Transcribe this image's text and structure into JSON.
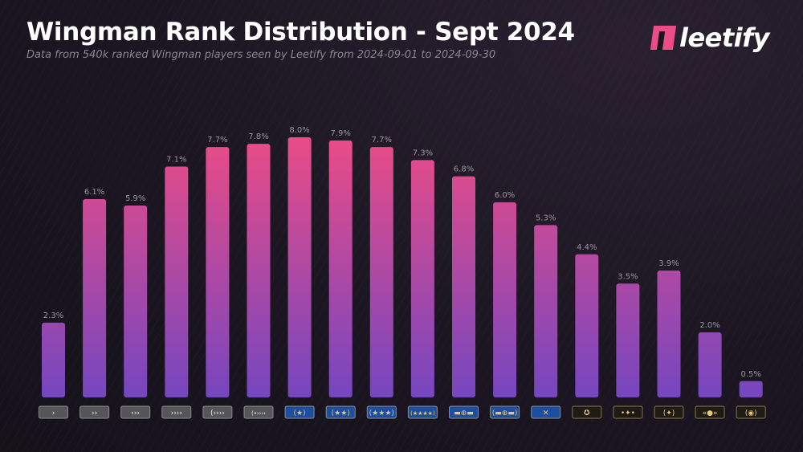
{
  "header": {
    "title": "Wingman Rank Distribution - Sept 2024",
    "subtitle": "Data from 540k ranked Wingman players seen by Leetify from 2024-09-01 to 2024-09-30"
  },
  "brand": {
    "name": "leetify",
    "color": "#ea4e86"
  },
  "chart_data": {
    "type": "bar",
    "title": "Wingman Rank Distribution - Sept 2024",
    "xlabel": "",
    "ylabel": "",
    "ylim": [
      0,
      8.0
    ],
    "grid": false,
    "unit": "%",
    "categories": [
      "silver-1-icon",
      "silver-2-icon",
      "silver-3-icon",
      "silver-4-icon",
      "silver-elite-icon",
      "silver-elite-master-icon",
      "gold-nova-1-icon",
      "gold-nova-2-icon",
      "gold-nova-3-icon",
      "gold-nova-master-icon",
      "master-guardian-1-icon",
      "master-guardian-2-icon",
      "master-guardian-elite-icon",
      "distinguished-master-guardian-icon",
      "legendary-eagle-icon",
      "legendary-eagle-master-icon",
      "supreme-master-first-class-icon",
      "global-elite-icon"
    ],
    "values": [
      2.3,
      6.1,
      5.9,
      7.1,
      7.7,
      7.8,
      8.0,
      7.9,
      7.7,
      7.3,
      6.8,
      6.0,
      5.3,
      4.4,
      3.5,
      3.9,
      2.0,
      0.5
    ],
    "labels": [
      "2.3%",
      "6.1%",
      "5.9%",
      "7.1%",
      "7.7%",
      "7.8%",
      "8.0%",
      "7.9%",
      "7.7%",
      "7.3%",
      "6.8%",
      "6.0%",
      "5.3%",
      "4.4%",
      "3.5%",
      "3.9%",
      "2.0%",
      "0.5%"
    ],
    "badge_glyphs": [
      "›",
      "››",
      "›››",
      "››››",
      "(››››",
      "(•››››",
      "(★)",
      "(★★)",
      "(★★★)",
      "(★★★★)",
      "▬⊕▬",
      "(▬⊕▬)",
      "✕",
      "✪",
      "•✦•",
      "(✦)",
      "«●»",
      "(◉)"
    ],
    "badge_colors": [
      "#55555a",
      "#55555a",
      "#55555a",
      "#55555a",
      "#55555a",
      "#55555a",
      "#1d4f9e",
      "#1d4f9e",
      "#1d4f9e",
      "#1d4f9e",
      "#1d4f9e",
      "#1d4f9e",
      "#1d4f9e",
      "#1e1a16",
      "#1e1a16",
      "#1e1a16",
      "#1e1a16",
      "#1e1a16"
    ],
    "colors": {
      "top": "#ea4c86",
      "bottom": "#7646bf"
    }
  }
}
